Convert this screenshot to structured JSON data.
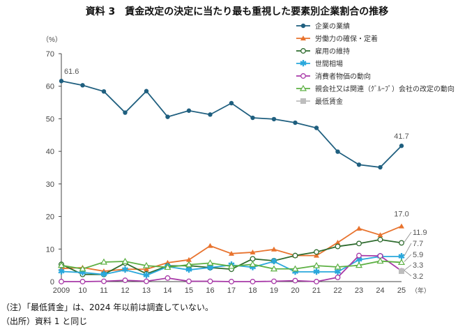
{
  "chart_data": {
    "type": "line",
    "title": "資料 3　賃金改定の決定に当たり最も重視した要素別企業割合の推移",
    "ylabel": "（%）",
    "xlabel": "（年）",
    "ylim": [
      0,
      70
    ],
    "yticks": [
      0,
      10,
      20,
      30,
      40,
      50,
      60,
      70
    ],
    "categories": [
      "2009",
      "10",
      "11",
      "12",
      "13",
      "14",
      "15",
      "16",
      "17",
      "18",
      "19",
      "20",
      "21",
      "22",
      "23",
      "24",
      "25"
    ],
    "legend_placement": "top-right",
    "grid": false,
    "series": [
      {
        "name": "企業の業績",
        "color": "#1f5f7f",
        "marker": "dot",
        "values": [
          61.6,
          60.3,
          58.4,
          51.9,
          58.5,
          50.6,
          52.5,
          51.3,
          54.8,
          50.3,
          49.9,
          48.8,
          47.2,
          39.9,
          35.9,
          35.1,
          41.7
        ],
        "end_label": "41.7",
        "first_label": "61.6"
      },
      {
        "name": "労働力の確保・定着",
        "color": "#e8732e",
        "marker": "triangle",
        "values": [
          4.0,
          4.3,
          3.2,
          3.8,
          3.8,
          5.8,
          6.7,
          11.0,
          8.6,
          9.0,
          9.9,
          8.0,
          8.0,
          12.0,
          16.3,
          14.3,
          17.0
        ],
        "end_label": "17.0"
      },
      {
        "name": "雇用の維持",
        "color": "#2e6b2e",
        "marker": "circle",
        "values": [
          5.3,
          2.2,
          2.2,
          5.7,
          2.4,
          4.8,
          4.9,
          4.3,
          3.8,
          7.0,
          6.4,
          8.0,
          9.1,
          10.8,
          11.7,
          12.9,
          11.9
        ],
        "end_label": "11.9"
      },
      {
        "name": "世間相場",
        "color": "#2aa8dc",
        "marker": "star",
        "values": [
          3.1,
          2.8,
          2.2,
          3.6,
          1.9,
          4.6,
          3.6,
          4.3,
          5.1,
          4.4,
          6.2,
          3.0,
          3.0,
          3.0,
          6.7,
          7.7,
          7.7
        ],
        "end_label": "7.7"
      },
      {
        "name": "消費者物価の動向",
        "color": "#a83aa8",
        "marker": "circle",
        "values": [
          0.0,
          0.0,
          0.1,
          0.4,
          0.1,
          1.1,
          0.1,
          0.1,
          0.0,
          0.0,
          0.1,
          0.3,
          0.0,
          1.3,
          8.0,
          7.9,
          3.3
        ],
        "end_label": "3.3"
      },
      {
        "name": "親会社又は関連（ｸﾞﾙｰﾌﾟ）会社の改定の動向",
        "color": "#5db043",
        "marker": "triangle-open",
        "values": [
          5.0,
          3.9,
          6.0,
          6.2,
          4.9,
          4.4,
          5.2,
          5.7,
          4.7,
          5.3,
          3.9,
          3.9,
          4.9,
          4.5,
          5.0,
          6.3,
          5.9
        ],
        "end_label": "5.9"
      },
      {
        "name": "最低賃金",
        "color": "#bdbdbd",
        "marker": "square",
        "values": [
          null,
          null,
          null,
          null,
          null,
          null,
          null,
          null,
          null,
          null,
          null,
          null,
          null,
          null,
          null,
          null,
          3.2
        ],
        "end_label": "3.2"
      }
    ]
  },
  "notes": {
    "note1": "（注）「最低賃金」は、2024 年以前は調査していない。",
    "note2": "（出所）資料 1 と同じ"
  }
}
